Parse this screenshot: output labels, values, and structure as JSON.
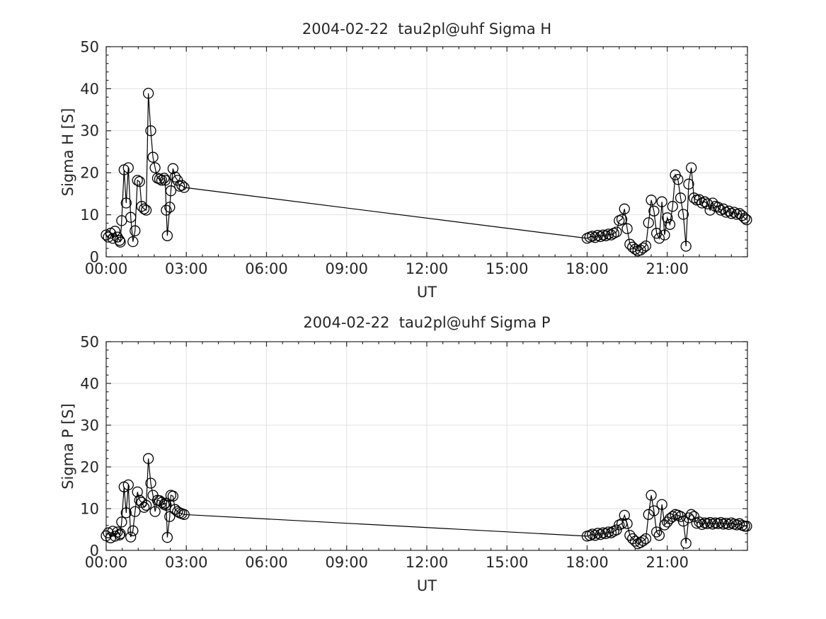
{
  "figure": {
    "background": "#ffffff",
    "axis_color": "#262626",
    "grid_color": "#e2e2e2",
    "data_color": "#000000",
    "text_color": "#262626",
    "marker": "open-circle"
  },
  "chart_data": [
    {
      "type": "line",
      "name": "sigma-h",
      "title": "2004-02-22  tau2pl@uhf Sigma H",
      "xlabel": "UT",
      "ylabel": "Sigma H [S]",
      "xlim_hours": [
        0,
        24
      ],
      "ylim": [
        0,
        50
      ],
      "xtick_hours": [
        0,
        3,
        6,
        9,
        12,
        15,
        18,
        21
      ],
      "xtick_labels": [
        "00:00",
        "03:00",
        "06:00",
        "09:00",
        "12:00",
        "15:00",
        "18:00",
        "21:00"
      ],
      "ytick_values": [
        0,
        10,
        20,
        30,
        40,
        50
      ],
      "x_minor_step_hours": 0.6,
      "y_minor_step": 2,
      "grid": true,
      "legend": null,
      "marker": "circle",
      "series": [
        {
          "name": "Sigma H",
          "x_hours": [
            0.0,
            0.08,
            0.17,
            0.25,
            0.33,
            0.42,
            0.5,
            0.53,
            0.58,
            0.67,
            0.75,
            0.83,
            0.92,
            1.0,
            1.08,
            1.17,
            1.25,
            1.33,
            1.42,
            1.5,
            1.58,
            1.67,
            1.75,
            1.83,
            1.92,
            2.0,
            2.08,
            2.17,
            2.21,
            2.25,
            2.29,
            2.38,
            2.42,
            2.5,
            2.58,
            2.67,
            2.75,
            2.83,
            2.92,
            18.0,
            18.1,
            18.2,
            18.3,
            18.4,
            18.5,
            18.6,
            18.7,
            18.8,
            18.9,
            19.0,
            19.1,
            19.2,
            19.3,
            19.4,
            19.5,
            19.6,
            19.7,
            19.8,
            19.9,
            20.0,
            20.1,
            20.2,
            20.3,
            20.4,
            20.5,
            20.6,
            20.7,
            20.8,
            20.9,
            21.0,
            21.1,
            21.2,
            21.3,
            21.4,
            21.5,
            21.6,
            21.7,
            21.8,
            21.9,
            22.0,
            22.1,
            22.2,
            22.3,
            22.4,
            22.5,
            22.6,
            22.7,
            22.8,
            22.9,
            23.0,
            23.1,
            23.2,
            23.3,
            23.4,
            23.5,
            23.6,
            23.7,
            23.8,
            23.9,
            23.97
          ],
          "y": [
            5.2,
            4.7,
            5.6,
            4.4,
            6.1,
            4.7,
            3.9,
            3.5,
            8.6,
            20.7,
            12.8,
            21.2,
            9.4,
            3.6,
            6.2,
            18.2,
            17.9,
            12.0,
            11.4,
            11.1,
            38.9,
            30.0,
            23.7,
            21.2,
            18.7,
            18.5,
            18.2,
            18.7,
            18.2,
            11.1,
            5.0,
            11.8,
            15.7,
            21.0,
            19.0,
            18.2,
            16.8,
            17.0,
            16.5,
            4.4,
            4.7,
            4.9,
            4.6,
            5.1,
            4.8,
            5.2,
            5.0,
            5.4,
            5.2,
            5.6,
            5.9,
            8.6,
            8.9,
            11.4,
            6.7,
            3.0,
            2.3,
            1.8,
            1.4,
            1.6,
            2.1,
            2.6,
            8.1,
            13.5,
            10.9,
            5.6,
            4.4,
            13.1,
            5.2,
            9.3,
            7.7,
            12.0,
            19.5,
            18.4,
            14.0,
            10.1,
            2.5,
            17.3,
            21.2,
            14.0,
            13.5,
            13.6,
            12.8,
            13.1,
            12.6,
            11.1,
            12.8,
            12.0,
            11.8,
            11.1,
            11.4,
            10.6,
            10.9,
            10.3,
            10.6,
            10.1,
            10.3,
            9.8,
            9.2,
            8.8
          ]
        }
      ]
    },
    {
      "type": "line",
      "name": "sigma-p",
      "title": "2004-02-22  tau2pl@uhf Sigma P",
      "xlabel": "UT",
      "ylabel": "Sigma P [S]",
      "xlim_hours": [
        0,
        24
      ],
      "ylim": [
        0,
        50
      ],
      "xtick_hours": [
        0,
        3,
        6,
        9,
        12,
        15,
        18,
        21
      ],
      "xtick_labels": [
        "00:00",
        "03:00",
        "06:00",
        "09:00",
        "12:00",
        "15:00",
        "18:00",
        "21:00"
      ],
      "ytick_values": [
        0,
        10,
        20,
        30,
        40,
        50
      ],
      "x_minor_step_hours": 0.6,
      "y_minor_step": 2,
      "grid": true,
      "legend": null,
      "marker": "circle",
      "series": [
        {
          "name": "Sigma P",
          "x_hours": [
            0.0,
            0.08,
            0.17,
            0.25,
            0.33,
            0.42,
            0.5,
            0.53,
            0.58,
            0.67,
            0.75,
            0.83,
            0.92,
            1.0,
            1.08,
            1.17,
            1.25,
            1.33,
            1.42,
            1.5,
            1.58,
            1.67,
            1.75,
            1.83,
            1.92,
            2.0,
            2.08,
            2.17,
            2.21,
            2.25,
            2.29,
            2.38,
            2.42,
            2.5,
            2.58,
            2.67,
            2.75,
            2.83,
            2.92,
            18.0,
            18.1,
            18.2,
            18.3,
            18.4,
            18.5,
            18.6,
            18.7,
            18.8,
            18.9,
            19.0,
            19.1,
            19.2,
            19.3,
            19.4,
            19.5,
            19.6,
            19.7,
            19.8,
            19.9,
            20.0,
            20.1,
            20.2,
            20.3,
            20.4,
            20.5,
            20.6,
            20.7,
            20.8,
            20.9,
            21.0,
            21.1,
            21.2,
            21.3,
            21.4,
            21.5,
            21.6,
            21.7,
            21.8,
            21.9,
            22.0,
            22.1,
            22.2,
            22.3,
            22.4,
            22.5,
            22.6,
            22.7,
            22.8,
            22.9,
            23.0,
            23.1,
            23.2,
            23.3,
            23.4,
            23.5,
            23.6,
            23.7,
            23.8,
            23.9,
            23.97
          ],
          "y": [
            3.5,
            4.2,
            3.0,
            4.6,
            3.4,
            4.4,
            3.7,
            4.0,
            6.8,
            15.2,
            9.0,
            15.7,
            3.2,
            4.7,
            9.3,
            14.0,
            12.0,
            11.5,
            10.3,
            10.8,
            22.0,
            16.1,
            13.2,
            9.3,
            12.0,
            11.9,
            11.5,
            11.0,
            11.3,
            10.8,
            3.1,
            8.1,
            13.2,
            13.0,
            9.8,
            9.3,
            9.0,
            8.8,
            8.6,
            3.4,
            3.6,
            3.9,
            3.6,
            4.1,
            3.8,
            4.2,
            4.0,
            4.4,
            4.2,
            4.6,
            4.9,
            6.1,
            6.4,
            8.4,
            6.4,
            3.6,
            2.8,
            2.2,
            1.6,
            1.9,
            2.3,
            2.8,
            8.6,
            13.2,
            9.5,
            4.4,
            3.6,
            11.0,
            6.1,
            6.8,
            7.6,
            8.1,
            8.6,
            8.4,
            8.1,
            7.0,
            1.7,
            7.8,
            8.6,
            8.1,
            6.5,
            6.8,
            6.2,
            6.6,
            6.4,
            6.7,
            6.3,
            6.6,
            6.4,
            6.7,
            6.3,
            6.5,
            6.2,
            6.6,
            6.3,
            6.1,
            6.4,
            6.0,
            5.8,
            5.8
          ]
        }
      ]
    }
  ]
}
